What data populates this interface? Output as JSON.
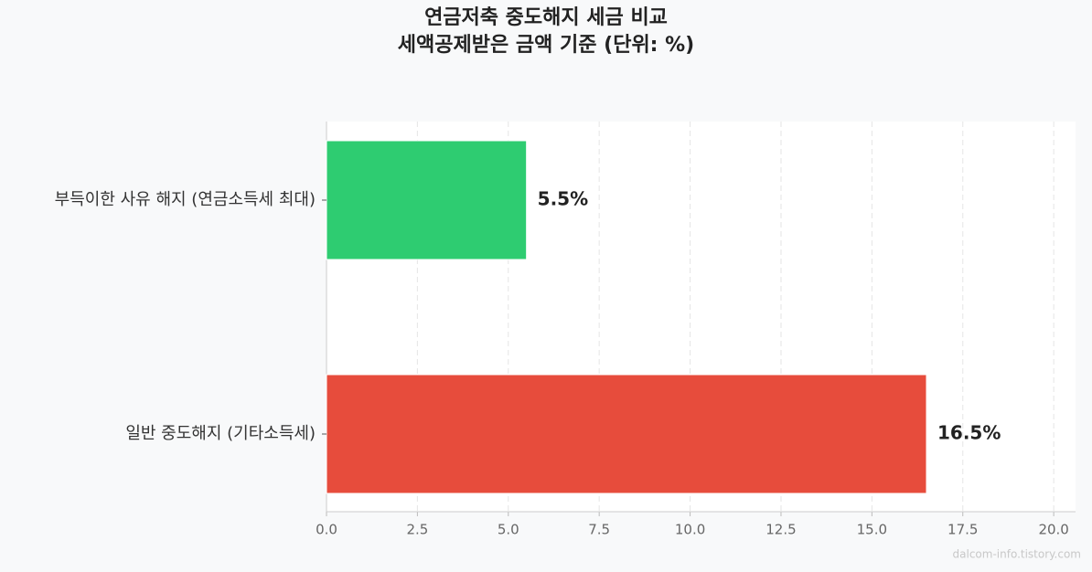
{
  "chart_data": {
    "type": "barh",
    "title": [
      "연금저축 중도해지 세금 비교",
      "세액공제받은 금액 기준 (단위: %)"
    ],
    "categories": [
      "부득이한 사유 해지 (연금소득세 최대)",
      "일반 중도해지 (기타소득세)"
    ],
    "values": [
      5.5,
      16.5
    ],
    "value_labels": [
      "5.5%",
      "16.5%"
    ],
    "colors": [
      "#2ecc71",
      "#e74c3c"
    ],
    "xlim": [
      0,
      20.6
    ],
    "xticks": [
      {
        "value": 0,
        "label": "0.0"
      },
      2.5,
      {
        "value": 5,
        "label": "5.0"
      },
      7.5,
      {
        "value": 10,
        "label": "10.0"
      },
      12.5,
      {
        "value": 15,
        "label": "15.0"
      },
      17.5,
      {
        "value": 20,
        "label": "20.0"
      }
    ],
    "grid": true,
    "watermark": "dalcom-info.tistory.com"
  }
}
